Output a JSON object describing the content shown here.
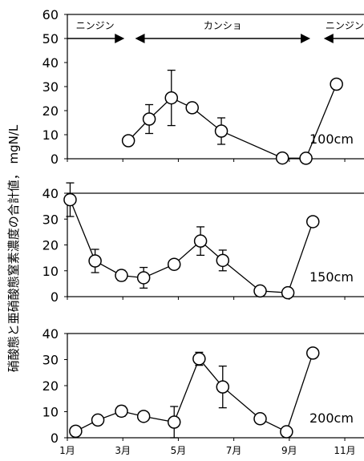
{
  "chart_data": {
    "type": "line",
    "ylabel": "硝酸態と亜硝酸態窒素濃度の合計値， mgN/L",
    "x_tick_labels": [
      {
        "label": "1月",
        "x": 1
      },
      {
        "label": "3月",
        "x": 3
      },
      {
        "label": "5月",
        "x": 5
      },
      {
        "label": "7月",
        "x": 7
      },
      {
        "label": "9月",
        "x": 9
      },
      {
        "label": "11月",
        "x": 11
      }
    ],
    "xlim": [
      1,
      11.75
    ],
    "crop_periods": [
      {
        "name": "ニンジン",
        "from": 1.0,
        "to": 3.0,
        "arrow_left": false,
        "arrow_right": true
      },
      {
        "name": "カンショ",
        "from": 3.5,
        "to": 9.7,
        "arrow_left": true,
        "arrow_right": true
      },
      {
        "name": "ニンジン",
        "from": 10.3,
        "to": 11.75,
        "arrow_left": true,
        "arrow_right": false
      }
    ],
    "panels": [
      {
        "depth_label": "100cm",
        "ylim": [
          0,
          60
        ],
        "yticks": [
          0,
          10,
          20,
          30,
          40,
          50,
          60
        ],
        "points": [
          {
            "x": 3.2,
            "y": 7.5
          },
          {
            "x": 3.95,
            "y": 16.5,
            "err": 6
          },
          {
            "x": 4.75,
            "y": 25.3,
            "err": 11.5
          },
          {
            "x": 5.5,
            "y": 21.2
          },
          {
            "x": 6.55,
            "y": 11.5,
            "err": 5.5
          },
          {
            "x": 8.75,
            "y": 0.3
          },
          {
            "x": 9.6,
            "y": 0.2
          },
          {
            "x": 10.7,
            "y": 31
          }
        ]
      },
      {
        "depth_label": "150cm",
        "ylim": [
          0,
          40
        ],
        "yticks": [
          0,
          10,
          20,
          30,
          40
        ],
        "points": [
          {
            "x": 1.1,
            "y": 37.5,
            "err": 6.5
          },
          {
            "x": 2.0,
            "y": 13.8,
            "err": 4.5
          },
          {
            "x": 2.95,
            "y": 8.2,
            "err": 2
          },
          {
            "x": 3.75,
            "y": 7.3,
            "err": 4
          },
          {
            "x": 4.85,
            "y": 12.5
          },
          {
            "x": 5.8,
            "y": 21.5,
            "err": 5.5
          },
          {
            "x": 6.6,
            "y": 14,
            "err": 4
          },
          {
            "x": 7.95,
            "y": 2.2
          },
          {
            "x": 8.95,
            "y": 1.5
          },
          {
            "x": 9.85,
            "y": 29
          }
        ]
      },
      {
        "depth_label": "200cm",
        "ylim": [
          0,
          40
        ],
        "yticks": [
          0,
          10,
          20,
          30,
          40
        ],
        "points": [
          {
            "x": 1.3,
            "y": 2.5
          },
          {
            "x": 2.1,
            "y": 6.8
          },
          {
            "x": 2.95,
            "y": 10.2,
            "err": 2
          },
          {
            "x": 3.75,
            "y": 8.2
          },
          {
            "x": 4.85,
            "y": 6.0,
            "err": 6
          },
          {
            "x": 5.75,
            "y": 30.3,
            "err": 2.5
          },
          {
            "x": 6.6,
            "y": 19.5,
            "err": 8
          },
          {
            "x": 7.95,
            "y": 7.3
          },
          {
            "x": 8.9,
            "y": 2.3
          },
          {
            "x": 9.85,
            "y": 32.5
          }
        ]
      }
    ]
  }
}
